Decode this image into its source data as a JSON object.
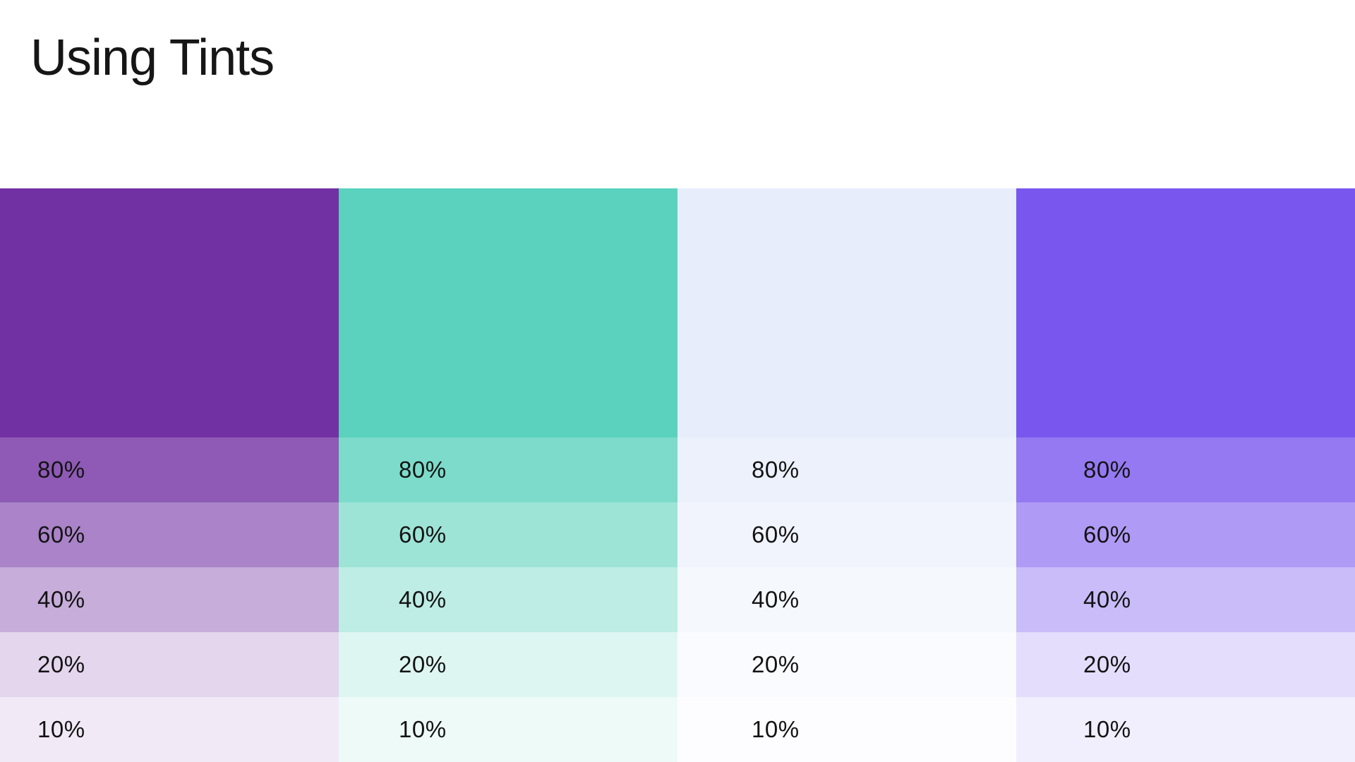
{
  "page": {
    "title": "Using Tints"
  },
  "palette": {
    "columns": [
      {
        "name": "purple",
        "base_hex": "#7231A3"
      },
      {
        "name": "teal",
        "base_hex": "#5BD2BD"
      },
      {
        "name": "lavender",
        "base_hex": "#E7EDFB"
      },
      {
        "name": "violet",
        "base_hex": "#7957EF"
      }
    ],
    "tints": [
      {
        "label": "80%",
        "alpha": 0.8
      },
      {
        "label": "60%",
        "alpha": 0.6
      },
      {
        "label": "40%",
        "alpha": 0.4
      },
      {
        "label": "20%",
        "alpha": 0.2
      },
      {
        "label": "10%",
        "alpha": 0.1
      }
    ]
  },
  "text_color": "#161616",
  "background_color": "#FFFFFF"
}
